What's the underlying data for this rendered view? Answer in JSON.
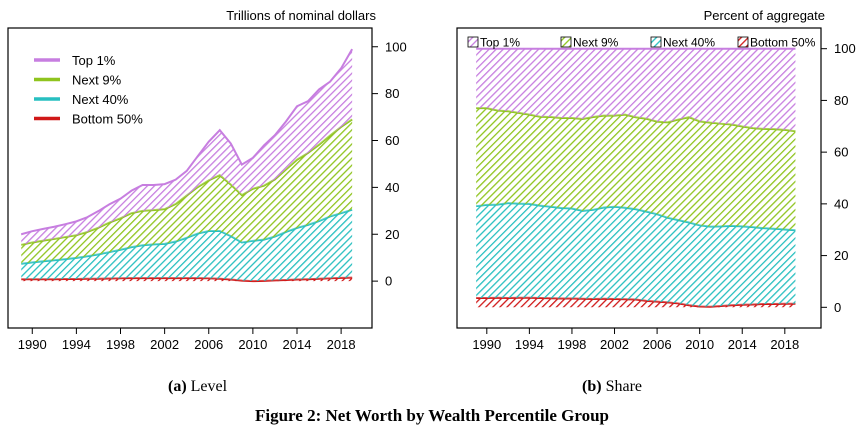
{
  "figure_title": "Figure 2: Net Worth by Wealth Percentile Group",
  "colors": {
    "top1": "#c77ee0",
    "next9": "#8fc41e",
    "next40": "#27bfc0",
    "bottom50": "#d01818",
    "background": "#ffffff"
  },
  "chart_data": [
    {
      "type": "area",
      "panel_label": "(a)",
      "caption": "Level",
      "title": "Trillions of nominal dollars",
      "stacked": true,
      "x": [
        1989,
        1990,
        1991,
        1992,
        1993,
        1994,
        1995,
        1996,
        1997,
        1998,
        1999,
        2000,
        2001,
        2002,
        2003,
        2004,
        2005,
        2006,
        2007,
        2008,
        2009,
        2010,
        2011,
        2012,
        2013,
        2014,
        2015,
        2016,
        2017,
        2018,
        2019
      ],
      "series": [
        {
          "name": "Bottom 50%",
          "values": [
            0.8,
            0.8,
            0.8,
            0.8,
            0.9,
            0.9,
            1.0,
            1.0,
            1.1,
            1.2,
            1.3,
            1.3,
            1.3,
            1.3,
            1.3,
            1.3,
            1.3,
            1.2,
            1.0,
            0.7,
            0.2,
            0.0,
            0.1,
            0.3,
            0.5,
            0.7,
            0.8,
            1.0,
            1.2,
            1.4,
            1.5
          ]
        },
        {
          "name": "Next 40%",
          "values": [
            6.6,
            7.2,
            7.7,
            8.1,
            8.5,
            9.0,
            9.6,
            10.4,
            11.3,
            12.2,
            13.2,
            14.0,
            14.4,
            14.6,
            15.6,
            17.2,
            19.0,
            20.2,
            20.4,
            18.5,
            16.3,
            17.2,
            17.6,
            18.7,
            20.5,
            22.0,
            23.2,
            24.6,
            26.4,
            27.6,
            29.0
          ]
        },
        {
          "name": "Next 9%",
          "values": [
            8.1,
            8.5,
            8.8,
            9.1,
            9.4,
            9.7,
            10.4,
            11.4,
            12.6,
            13.4,
            14.5,
            14.7,
            14.6,
            14.8,
            16.0,
            18.0,
            19.8,
            21.6,
            23.8,
            22.0,
            20.2,
            22.2,
            23.0,
            24.4,
            26.6,
            29.1,
            30.7,
            32.6,
            34.5,
            36.8,
            38.5
          ]
        },
        {
          "name": "Top 1%",
          "values": [
            4.5,
            4.8,
            5.0,
            5.2,
            5.5,
            5.9,
            6.3,
            7.1,
            7.8,
            8.4,
            9.6,
            11.0,
            10.7,
            10.7,
            10.4,
            10.5,
            13.2,
            16.5,
            19.2,
            17.5,
            13.0,
            13.2,
            17.2,
            18.9,
            20.5,
            22.8,
            22.1,
            23.6,
            23.0,
            25.0,
            30.0
          ]
        }
      ],
      "x_ticks": [
        "1990",
        "1994",
        "1998",
        "2002",
        "2006",
        "2010",
        "2014",
        "2018"
      ],
      "y_ticks": [
        "0",
        "20",
        "40",
        "60",
        "80",
        "100"
      ],
      "xlim": [
        1987.8,
        2020.8
      ],
      "ylim": [
        -20,
        108
      ],
      "y_axis_side": "right",
      "legend_position": "top-left",
      "legend_order": [
        "Top 1%",
        "Next 9%",
        "Next 40%",
        "Bottom 50%"
      ],
      "grid": false
    },
    {
      "type": "area",
      "panel_label": "(b)",
      "caption": "Share",
      "title": "Percent of aggregate",
      "stacked": true,
      "x": [
        1989,
        1990,
        1991,
        1992,
        1993,
        1994,
        1995,
        1996,
        1997,
        1998,
        1999,
        2000,
        2001,
        2002,
        2003,
        2004,
        2005,
        2006,
        2007,
        2008,
        2009,
        2010,
        2011,
        2012,
        2013,
        2014,
        2015,
        2016,
        2017,
        2018,
        2019
      ],
      "series": [
        {
          "name": "Bottom 50%",
          "values": [
            3.6,
            3.6,
            3.7,
            3.6,
            3.7,
            3.7,
            3.6,
            3.5,
            3.4,
            3.4,
            3.3,
            3.2,
            3.3,
            3.2,
            3.1,
            3.0,
            2.5,
            2.2,
            1.9,
            1.5,
            0.8,
            0.3,
            0.2,
            0.5,
            0.8,
            1.0,
            1.1,
            1.3,
            1.3,
            1.4,
            1.4
          ]
        },
        {
          "name": "Next 40%",
          "values": [
            35.5,
            36.0,
            36.0,
            36.7,
            36.4,
            36.3,
            35.7,
            35.4,
            35.0,
            34.8,
            34.0,
            34.5,
            35.3,
            35.7,
            35.4,
            34.9,
            34.5,
            33.8,
            32.7,
            32.2,
            32.0,
            31.4,
            31.0,
            30.8,
            30.7,
            30.3,
            29.9,
            29.3,
            29.1,
            28.7,
            28.4
          ]
        },
        {
          "name": "Next 9%",
          "values": [
            37.9,
            37.4,
            36.4,
            35.5,
            35.1,
            34.5,
            34.4,
            34.7,
            34.8,
            35.0,
            35.5,
            35.9,
            35.5,
            35.2,
            36.0,
            35.6,
            35.9,
            35.8,
            36.9,
            38.9,
            40.7,
            40.2,
            40.2,
            39.7,
            39.2,
            38.6,
            38.3,
            38.4,
            38.5,
            38.5,
            38.3
          ]
        },
        {
          "name": "Top 1%",
          "values": [
            23.0,
            23.0,
            23.9,
            24.2,
            24.8,
            25.5,
            26.3,
            26.4,
            26.8,
            26.8,
            27.2,
            26.4,
            25.9,
            25.9,
            25.5,
            26.5,
            27.1,
            28.2,
            28.5,
            27.4,
            26.5,
            28.1,
            28.6,
            29.0,
            29.3,
            30.1,
            30.7,
            31.0,
            31.1,
            31.4,
            31.9
          ]
        }
      ],
      "x_ticks": [
        "1990",
        "1994",
        "1998",
        "2002",
        "2006",
        "2010",
        "2014",
        "2018"
      ],
      "y_ticks": [
        "0",
        "20",
        "40",
        "60",
        "80",
        "100"
      ],
      "xlim": [
        1987.2,
        2021.4
      ],
      "ylim": [
        -8,
        108
      ],
      "y_axis_side": "right",
      "legend_position": "top",
      "legend_order": [
        "Top 1%",
        "Next 9%",
        "Next 40%",
        "Bottom 50%"
      ],
      "grid": false
    }
  ]
}
